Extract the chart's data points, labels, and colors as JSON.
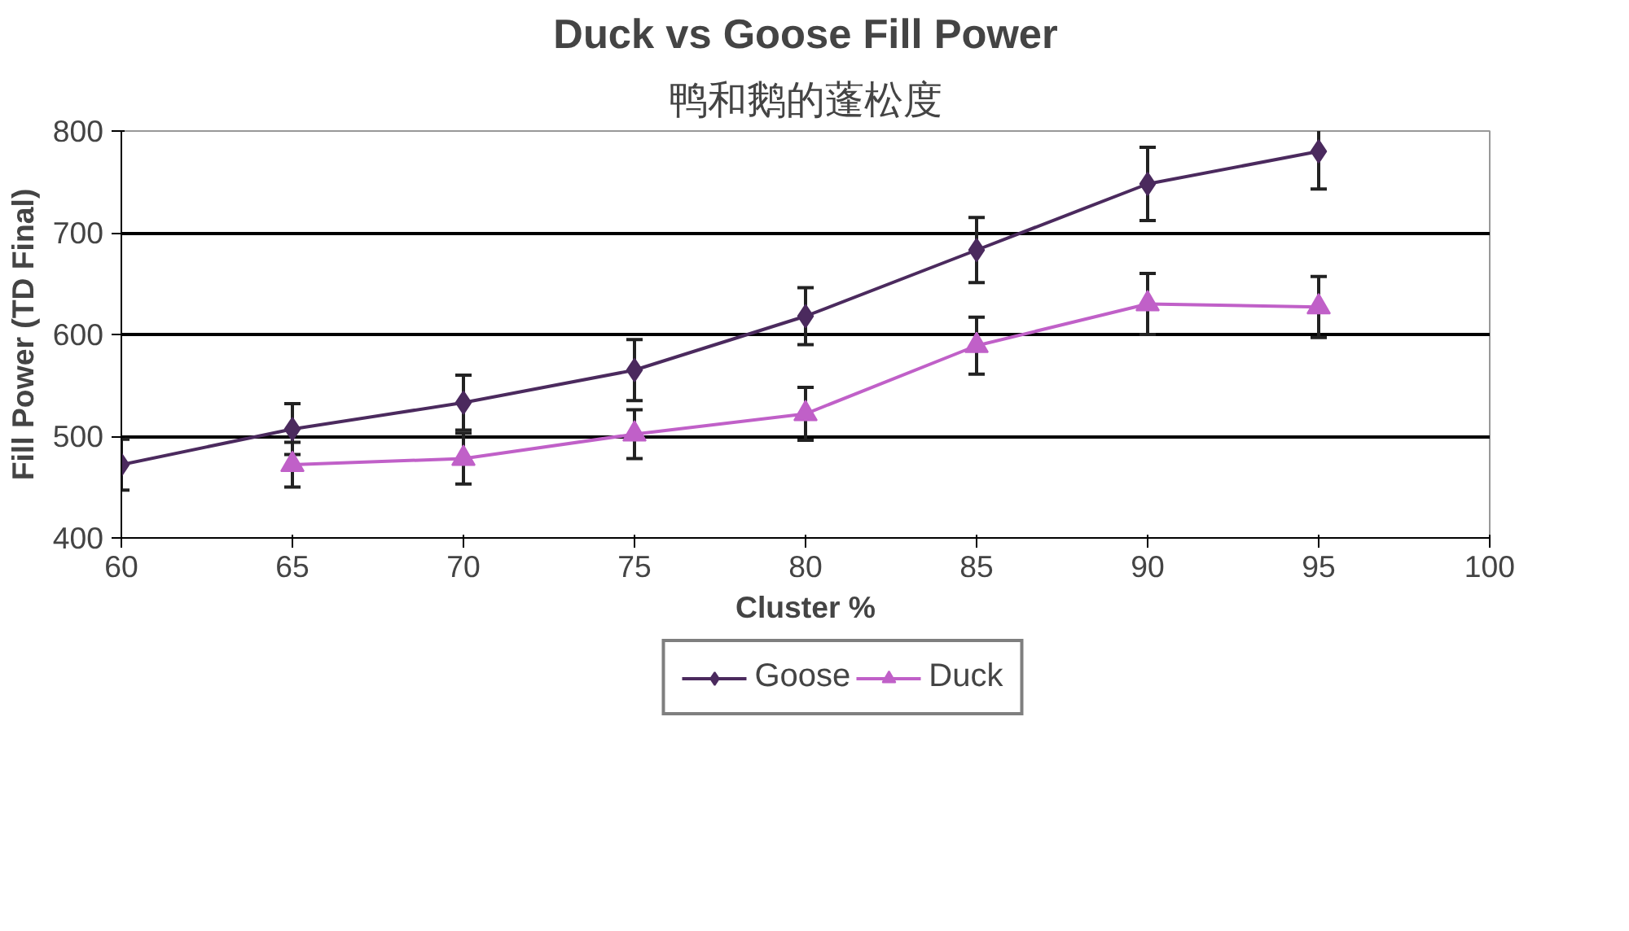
{
  "chart_data": {
    "type": "line",
    "title": "Duck vs Goose Fill Power",
    "subtitle": "鸭和鹅的蓬松度",
    "xlabel": "Cluster %",
    "ylabel": "Fill Power (TD Final)",
    "x": [
      60,
      65,
      70,
      75,
      80,
      85,
      90,
      95
    ],
    "series": [
      {
        "name": "Goose",
        "color": "#4b2a5e",
        "marker": "diamond",
        "values": [
          472,
          507,
          533,
          565,
          618,
          683,
          748,
          780
        ],
        "errors": [
          25,
          25,
          27,
          30,
          28,
          32,
          36,
          37
        ]
      },
      {
        "name": "Duck",
        "color": "#c060c8",
        "marker": "triangle",
        "values": [
          null,
          472,
          478,
          502,
          522,
          589,
          630,
          627
        ],
        "errors": [
          null,
          22,
          25,
          24,
          26,
          28,
          30,
          30
        ]
      }
    ],
    "xlim": [
      60,
      100
    ],
    "xticks": [
      60,
      65,
      70,
      75,
      80,
      85,
      90,
      95,
      100
    ],
    "ylim": [
      400,
      800
    ],
    "yticks": [
      400,
      500,
      600,
      700,
      800
    ],
    "grid": "y",
    "legend": "bottom",
    "line_style": "solid"
  }
}
